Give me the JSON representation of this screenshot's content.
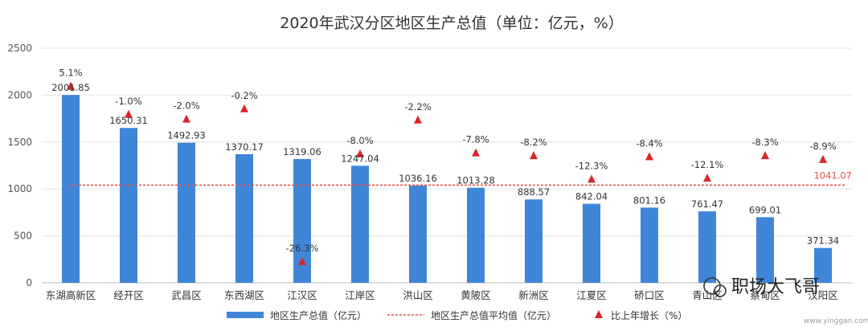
{
  "chart_data": {
    "type": "bar",
    "title": "2020年武汉分区地区生产总值（单位：亿元，%）",
    "categories": [
      "东湖高新区",
      "经开区",
      "武昌区",
      "东西湖区",
      "江汉区",
      "江岸区",
      "洪山区",
      "黄陂区",
      "新洲区",
      "江夏区",
      "硚口区",
      "青山区",
      "蔡甸区",
      "汉阳区"
    ],
    "yticks": [
      0,
      500,
      1000,
      1500,
      2000,
      2500
    ],
    "ylim": [
      0,
      2500
    ],
    "grid": true,
    "legend_position": "bottom",
    "series": [
      {
        "name": "地区生产总值（亿元）",
        "type": "bar",
        "values": [
          2001.85,
          1650.31,
          1492.93,
          1370.17,
          1319.06,
          1247.04,
          1036.16,
          1013.28,
          888.57,
          842.04,
          801.16,
          761.47,
          699.01,
          371.34
        ],
        "value_labels": [
          "2001.85",
          "1650.31",
          "1492.93",
          "1370.17",
          "1319.06",
          "1247.04",
          "1036.16",
          "1013.28",
          "888.57",
          "842.04",
          "801.16",
          "761.47",
          "699.01",
          "371.34"
        ]
      },
      {
        "name": "地区生产总值平均值（亿元）",
        "type": "hline",
        "value": 1041.07,
        "value_label": "1041.07"
      },
      {
        "name": "比上年增长（%）",
        "type": "scatter-marker",
        "values": [
          5.1,
          -1.0,
          -2.0,
          -0.2,
          -26.3,
          -8.0,
          -2.2,
          -7.8,
          -8.2,
          -12.3,
          -8.4,
          -12.1,
          -8.3,
          -8.9
        ],
        "value_labels": [
          "5.1%",
          "-1.0%",
          "-2.0%",
          "-0.2%",
          "-26.3%",
          "-8.0%",
          "-2.2%",
          "-7.8%",
          "-8.2%",
          "-12.3%",
          "-8.4%",
          "-12.1%",
          "-8.3%",
          "-8.9%"
        ],
        "marker_heights": [
          2100,
          1800,
          1750,
          1860,
          230,
          1380,
          1740,
          1390,
          1360,
          1110,
          1350,
          1120,
          1360,
          1320
        ]
      }
    ],
    "colors": {
      "bar": "#3f86d8",
      "avg": "#e0554d",
      "marker": "#d9262c",
      "grid": "#e3e3e3",
      "axis": "#bbbbbb"
    }
  },
  "watermark": {
    "text": "职场大飞哥",
    "url": "www.yinggan.com"
  }
}
